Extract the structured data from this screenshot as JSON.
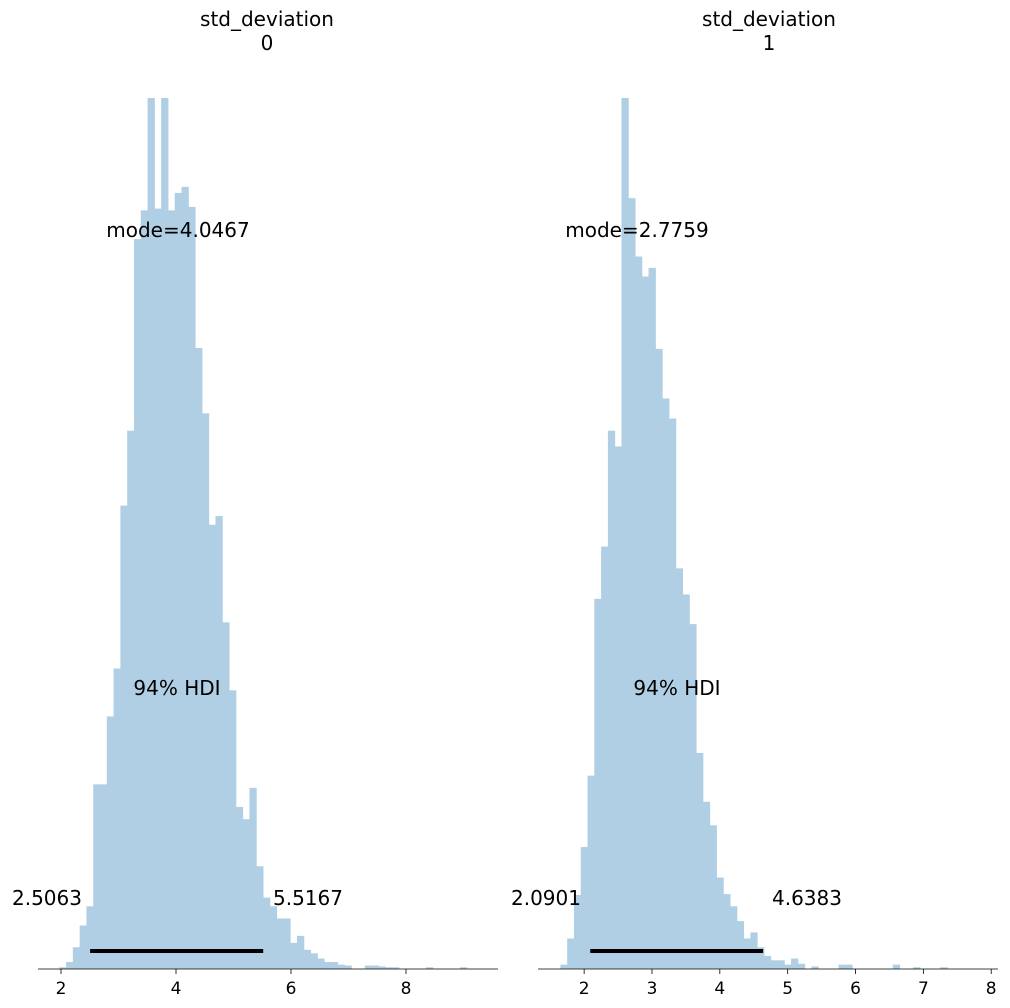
{
  "figure": {
    "bar_color": "#b0cfe4",
    "hdi_color": "#000000"
  },
  "chart_data": [
    {
      "type": "histogram",
      "title_line1": "std_deviation",
      "title_line2": "0",
      "mode_label": "mode=4.0467",
      "hdi_label": "94% HDI",
      "hdi_low_label": "2.5063",
      "hdi_high_label": "5.5167",
      "hdi": [
        2.5063,
        5.5167
      ],
      "xlim": [
        1.6,
        9.6
      ],
      "xticks": [
        2,
        4,
        6,
        8
      ],
      "bins": {
        "start": 1.97,
        "width": 0.1181,
        "heights": [
          0.002,
          0.008,
          0.025,
          0.05,
          0.072,
          0.212,
          0.212,
          0.29,
          0.345,
          0.532,
          0.618,
          0.838,
          0.871,
          1.0,
          0.873,
          1.0,
          0.871,
          0.891,
          0.898,
          0.875,
          0.713,
          0.638,
          0.51,
          0.52,
          0.398,
          0.32,
          0.186,
          0.172,
          0.208,
          0.118,
          0.082,
          0.072,
          0.058,
          0.058,
          0.03,
          0.038,
          0.022,
          0.018,
          0.012,
          0.008,
          0.008,
          0.005,
          0.004,
          0.0,
          0.0,
          0.004,
          0.004,
          0.003,
          0.002,
          0.002,
          0.0,
          0.0,
          0.0,
          0.0,
          0.002,
          0.0,
          0.0,
          0.0,
          0.0,
          0.002,
          0.0,
          0.0
        ]
      }
    },
    {
      "type": "histogram",
      "title_line1": "std_deviation",
      "title_line2": "1",
      "mode_label": "mode=2.7759",
      "hdi_label": "94% HDI",
      "hdi_low_label": "2.0901",
      "hdi_high_label": "4.6383",
      "hdi": [
        2.0901,
        4.6383
      ],
      "xlim": [
        1.32,
        8.1
      ],
      "xticks": [
        2,
        3,
        4,
        5,
        6,
        7,
        8
      ],
      "bins": {
        "start": 1.65,
        "width": 0.1,
        "heights": [
          0.005,
          0.035,
          0.085,
          0.14,
          0.222,
          0.425,
          0.485,
          0.618,
          0.6,
          1.0,
          0.885,
          0.818,
          0.795,
          0.805,
          0.712,
          0.655,
          0.632,
          0.46,
          0.43,
          0.396,
          0.248,
          0.192,
          0.165,
          0.105,
          0.086,
          0.072,
          0.055,
          0.035,
          0.042,
          0.025,
          0.015,
          0.01,
          0.01,
          0.005,
          0.012,
          0.006,
          0.0,
          0.003,
          0.0,
          0.0,
          0.0,
          0.005,
          0.005,
          0.0,
          0.0,
          0.0,
          0.0,
          0.0,
          0.0,
          0.005,
          0.0,
          0.0,
          0.002,
          0.0,
          0.0,
          0.0,
          0.002,
          0.0,
          0.0,
          0.0,
          0.0
        ]
      }
    }
  ]
}
